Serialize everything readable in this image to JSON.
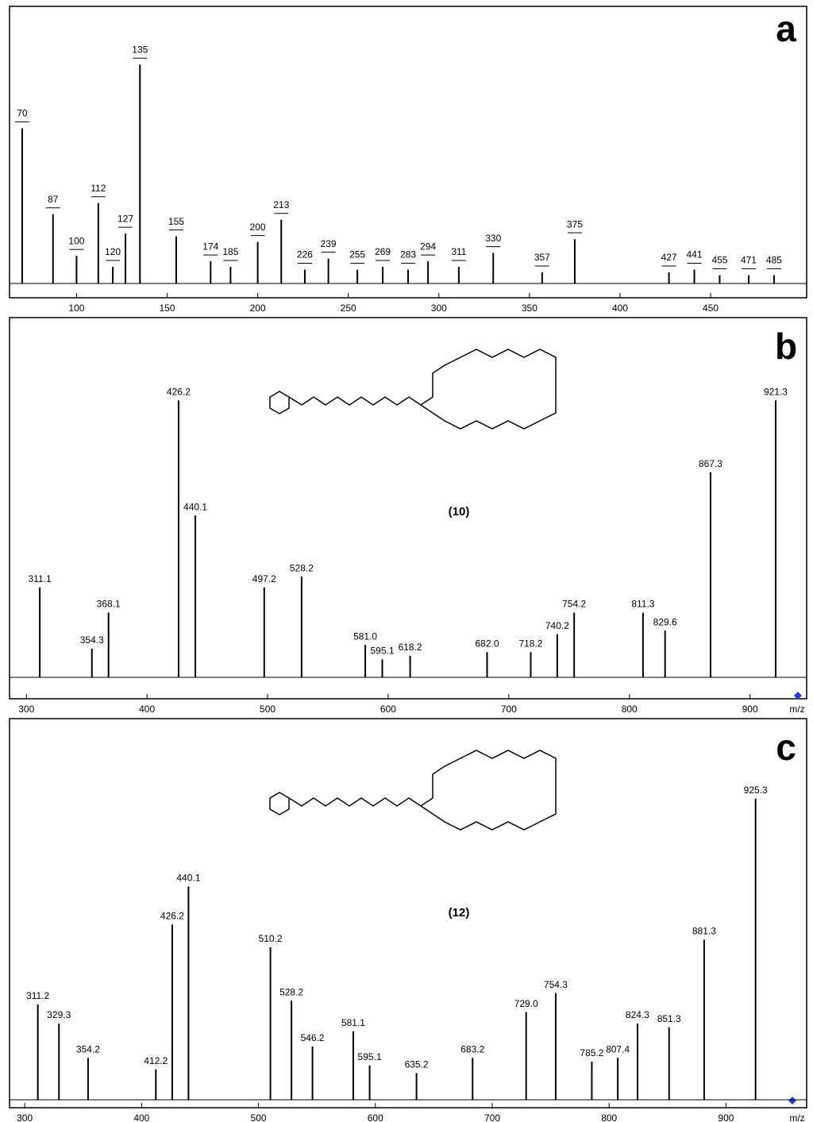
{
  "chart_data": [
    {
      "type": "spectrum",
      "panel": "a",
      "xlim": [
        63,
        503
      ],
      "ylim": [
        0,
        100
      ],
      "xticks": [
        100,
        150,
        200,
        250,
        300,
        350,
        400,
        450
      ],
      "color": "#000000",
      "x": [
        70,
        87,
        100,
        112,
        120,
        127,
        135,
        155,
        174,
        185,
        200,
        213,
        226,
        239,
        255,
        269,
        283,
        294,
        311,
        330,
        357,
        375,
        427,
        441,
        455,
        471,
        485
      ],
      "values": [
        56,
        25,
        10,
        29,
        6,
        18,
        79,
        17,
        8,
        6,
        15,
        23,
        5,
        9,
        5,
        6,
        5,
        8,
        6,
        11,
        4,
        16,
        4,
        5,
        3,
        3,
        3
      ]
    },
    {
      "type": "spectrum",
      "panel": "b",
      "compound": "(10)",
      "xlabel": "m/z",
      "xlim": [
        286,
        947
      ],
      "ylim": [
        0,
        100
      ],
      "xticks": [
        300,
        400,
        500,
        600,
        700,
        800,
        900
      ],
      "color": "#000000",
      "x": [
        311.1,
        354.3,
        368.1,
        426.2,
        440.1,
        497.2,
        528.2,
        581.0,
        595.1,
        618.2,
        682.0,
        718.2,
        740.2,
        754.2,
        811.3,
        829.6,
        867.3,
        921.3
      ],
      "x_labels": [
        "311.1",
        "354.3",
        "368.1",
        "426.2",
        "440.1",
        "497.2",
        "528.2",
        "581.0",
        "595.1",
        "618.2",
        "682.0",
        "718.2",
        "740.2",
        "754.2",
        "811.3",
        "829.6",
        "867.3",
        "921.3"
      ],
      "values": [
        25,
        8,
        18,
        77,
        45,
        25,
        28,
        9,
        5,
        6,
        7,
        7,
        12,
        18,
        18,
        13,
        57,
        77
      ]
    },
    {
      "type": "spectrum",
      "panel": "c",
      "compound": "(12)",
      "xlabel": "m/z",
      "xlim": [
        287,
        969
      ],
      "ylim": [
        0,
        100
      ],
      "xticks": [
        300,
        400,
        500,
        600,
        700,
        800,
        900
      ],
      "color": "#000000",
      "x": [
        311.2,
        329.3,
        354.2,
        412.2,
        426.2,
        440.1,
        510.2,
        528.2,
        546.2,
        581.1,
        595.1,
        635.2,
        683.2,
        729.0,
        754.3,
        785.2,
        807.4,
        824.3,
        851.3,
        881.3,
        925.3
      ],
      "x_labels": [
        "311.2",
        "329.3",
        "354.2",
        "412.2",
        "426.2",
        "440.1",
        "510.2",
        "528.2",
        "546.2",
        "581.1",
        "595.1",
        "635.2",
        "683.2",
        "729.0",
        "754.3",
        "785.2",
        "807.4",
        "824.3",
        "851.3",
        "881.3",
        "925.3"
      ],
      "values": [
        25,
        20,
        11,
        8,
        46,
        56,
        40,
        26,
        14,
        18,
        9,
        7,
        11,
        23,
        28,
        10,
        11,
        20,
        19,
        42,
        79
      ]
    }
  ]
}
